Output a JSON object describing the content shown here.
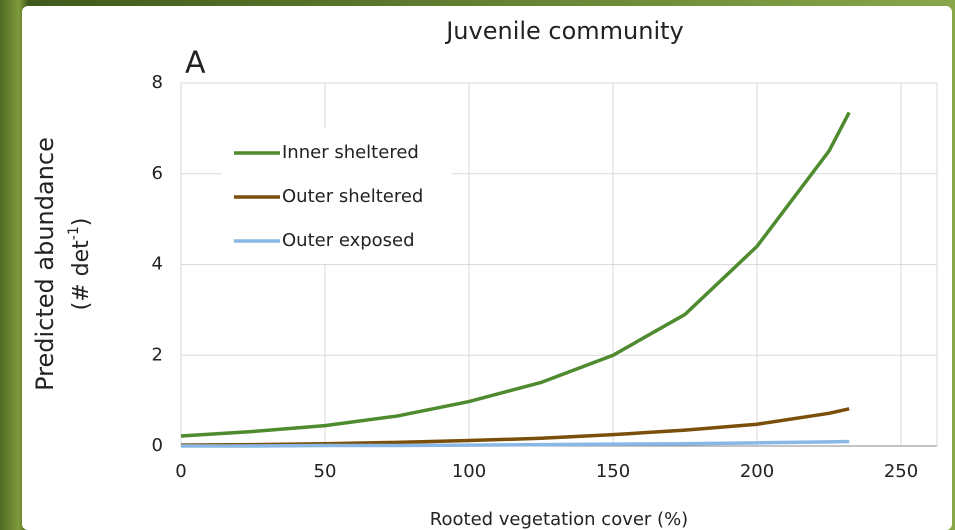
{
  "chart_data": {
    "type": "line",
    "title": "Juvenile community",
    "panel_label": "A",
    "x_label": "Rooted vegetation cover (%)",
    "y_label": [
      "Predicted abundance",
      "(# det",
      "-1",
      ")"
    ],
    "x": [
      0,
      25,
      50,
      75,
      100,
      125,
      150,
      175,
      200,
      225,
      232
    ],
    "series": [
      {
        "name": "Inner sheltered",
        "color": "#4e8a2e",
        "values": [
          0.22,
          0.32,
          0.45,
          0.66,
          0.98,
          1.4,
          2.0,
          2.9,
          4.4,
          6.5,
          7.35
        ]
      },
      {
        "name": "Outer sheltered",
        "color": "#7a4f0a",
        "values": [
          0.02,
          0.03,
          0.05,
          0.08,
          0.12,
          0.17,
          0.25,
          0.35,
          0.48,
          0.72,
          0.82
        ]
      },
      {
        "name": "Outer exposed",
        "color": "#8ab8e6",
        "values": [
          0,
          0,
          0.01,
          0.01,
          0.02,
          0.03,
          0.04,
          0.05,
          0.07,
          0.09,
          0.1
        ]
      }
    ],
    "xlim": [
      0,
      262.5
    ],
    "xticks": [
      0,
      50,
      100,
      150,
      200,
      250
    ],
    "ylim": [
      0,
      8
    ],
    "yticks": [
      0,
      2,
      4,
      6,
      8
    ],
    "grid": true
  }
}
